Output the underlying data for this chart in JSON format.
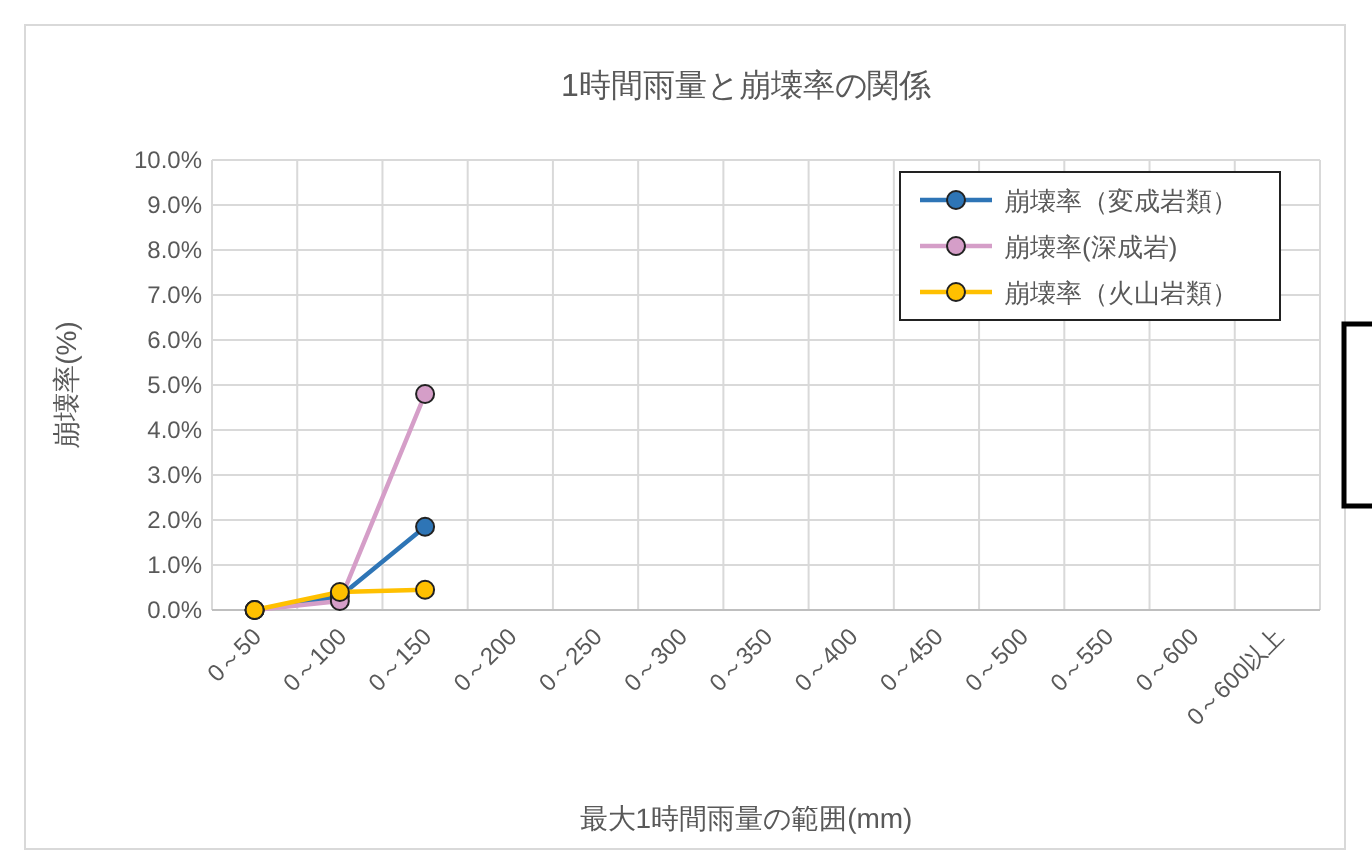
{
  "chart_data": {
    "type": "line",
    "title": "1時間雨量と崩壊率の関係",
    "xlabel": "最大1時間雨量の範囲(mm)",
    "ylabel": "崩壊率(%)",
    "categories": [
      "0～50",
      "0～100",
      "0～150",
      "0～200",
      "0～250",
      "0～300",
      "0～350",
      "0～400",
      "0～450",
      "0～500",
      "0～550",
      "0～600",
      "0～600以上"
    ],
    "series": [
      {
        "name": "崩壊率（変成岩類）",
        "color": "#2e75b6",
        "values": [
          0,
          0.3,
          1.85,
          null,
          null,
          null,
          null,
          null,
          null,
          null,
          null,
          null,
          null
        ]
      },
      {
        "name": "崩壊率(深成岩)",
        "color": "#d59ec8",
        "values": [
          0,
          0.2,
          4.8,
          null,
          null,
          null,
          null,
          null,
          null,
          null,
          null,
          null,
          null
        ]
      },
      {
        "name": "崩壊率（火山岩類）",
        "color": "#ffc000",
        "values": [
          0,
          0.4,
          0.45,
          null,
          null,
          null,
          null,
          null,
          null,
          null,
          null,
          null,
          null
        ]
      }
    ],
    "ylim": [
      0,
      10
    ],
    "yticks": [
      {
        "value": 0,
        "label": "0.0%"
      },
      {
        "value": 1,
        "label": "1.0%"
      },
      {
        "value": 2,
        "label": "2.0%"
      },
      {
        "value": 3,
        "label": "3.0%"
      },
      {
        "value": 4,
        "label": "4.0%"
      },
      {
        "value": 5,
        "label": "5.0%"
      },
      {
        "value": 6,
        "label": "6.0%"
      },
      {
        "value": 7,
        "label": "7.0%"
      },
      {
        "value": 8,
        "label": "8.0%"
      },
      {
        "value": 9,
        "label": "9.0%"
      },
      {
        "value": 10,
        "label": "10.0%"
      }
    ],
    "grid": true,
    "legend": "top right",
    "marker": "circle",
    "line_style": "solid"
  }
}
